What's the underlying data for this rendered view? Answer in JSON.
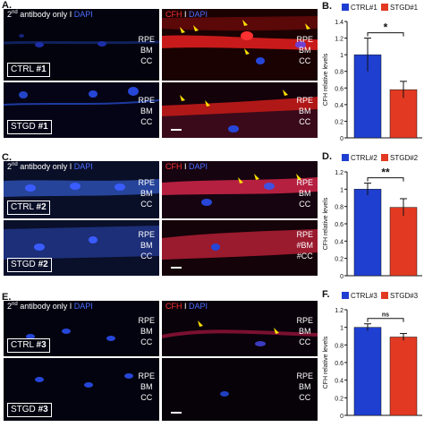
{
  "panels": [
    {
      "left": {
        "panel_letter": "A.",
        "title_prefix": "2",
        "title_sup": "nd",
        "title_rest": " antibody only I ",
        "title_dapi": "DAPI",
        "sample_prefix": "CTRL ",
        "sample_num": "#1"
      },
      "right": {
        "title_cfh": "CFH",
        "title_sep": " I ",
        "title_dapi": "DAPI",
        "sample_prefix": "STGD ",
        "sample_num": "#1"
      },
      "layers_top": [
        "RPE",
        "BM",
        "CC"
      ],
      "layers_bottom": [
        "RPE",
        "BM",
        "CC"
      ]
    },
    {
      "left": {
        "panel_letter": "C.",
        "title_prefix": "2",
        "title_sup": "nd",
        "title_rest": " antibody only I ",
        "title_dapi": "DAPI",
        "sample_prefix": "CTRL ",
        "sample_num": "#2"
      },
      "right": {
        "title_cfh": "CFH",
        "title_sep": " I ",
        "title_dapi": "DAPI",
        "sample_prefix": "STGD ",
        "sample_num": "#2"
      },
      "layers_top": [
        "RPE",
        "BM",
        "CC"
      ],
      "layers_bottom": [
        "RPE",
        "#BM",
        "#CC"
      ]
    },
    {
      "left": {
        "panel_letter": "E.",
        "title_prefix": "2",
        "title_sup": "nd",
        "title_rest": " antibody only I ",
        "title_dapi": "DAPI",
        "sample_prefix": "CTRL ",
        "sample_num": "#3"
      },
      "right": {
        "title_cfh": "CFH",
        "title_sep": " I ",
        "title_dapi": "DAPI",
        "sample_prefix": "STGD ",
        "sample_num": "#3"
      },
      "layers_top": [
        "RPE",
        "BM",
        "CC"
      ],
      "layers_bottom": [
        "RPE",
        "BM",
        "CC"
      ]
    }
  ],
  "colors": {
    "ctrl": "#1f3fd1",
    "stgd": "#e23a22",
    "dapi": "#2f55ff",
    "cfh": "#e32020",
    "arrow": "#ffe100"
  },
  "chart_data": [
    {
      "panel_letter": "B.",
      "type": "bar",
      "categories": [
        "CTRL#1",
        "STGD#1"
      ],
      "values": [
        1.0,
        0.58
      ],
      "errors": [
        0.2,
        0.1
      ],
      "ylabel": "CFH relative levels",
      "ylim": [
        0,
        1.4
      ],
      "yticks": [
        "0",
        "0.2",
        "0.4",
        "0.6",
        "0.8",
        "1",
        "1.2",
        "1.4"
      ],
      "significance": "*",
      "legend": [
        "CTRL#1",
        "STGD#1"
      ]
    },
    {
      "panel_letter": "D.",
      "type": "bar",
      "categories": [
        "CTRL#2",
        "STGD#2"
      ],
      "values": [
        1.0,
        0.79
      ],
      "errors": [
        0.07,
        0.1
      ],
      "ylabel": "CFH relative levels",
      "ylim": [
        0,
        1.2
      ],
      "yticks": [
        "0",
        "0.2",
        "0.4",
        "0.6",
        "0.8",
        "1",
        "1.2"
      ],
      "significance": "**",
      "legend": [
        "CTRL#2",
        "STGD#2"
      ]
    },
    {
      "panel_letter": "F.",
      "type": "bar",
      "categories": [
        "CTRL#3",
        "STGD#3"
      ],
      "values": [
        1.0,
        0.89
      ],
      "errors": [
        0.04,
        0.04
      ],
      "ylabel": "CFH relative levels",
      "ylim": [
        0,
        1.2
      ],
      "yticks": [
        "0",
        "0.2",
        "0.4",
        "0.6",
        "0.8",
        "1",
        "1.2"
      ],
      "significance": "ns",
      "legend": [
        "CTRL#3",
        "STGD#3"
      ]
    }
  ]
}
